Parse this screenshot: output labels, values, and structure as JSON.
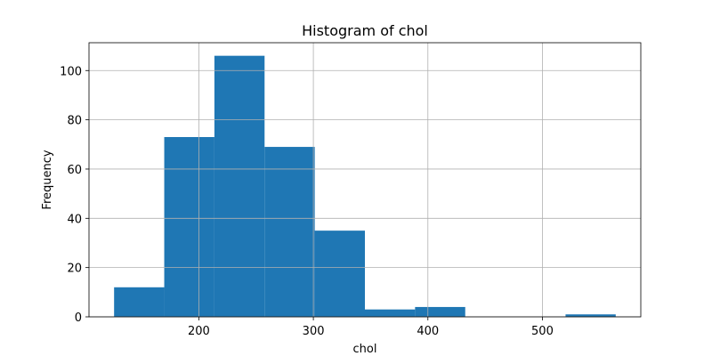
{
  "chart_data": {
    "type": "bar",
    "title": "Histogram of chol",
    "xlabel": "chol",
    "ylabel": "Frequency",
    "bin_edges": [
      126,
      169.8,
      213.6,
      257.4,
      301.2,
      345,
      388.8,
      432.6,
      476.4,
      520.2,
      564
    ],
    "values": [
      12,
      73,
      106,
      69,
      35,
      3,
      4,
      0,
      0,
      1
    ],
    "xlim": [
      104.1,
      585.9
    ],
    "ylim": [
      0,
      111.3
    ],
    "xticks": [
      200,
      300,
      400,
      500
    ],
    "yticks": [
      0,
      20,
      40,
      60,
      80,
      100
    ],
    "grid": true,
    "bar_color": "#1f77b4"
  }
}
